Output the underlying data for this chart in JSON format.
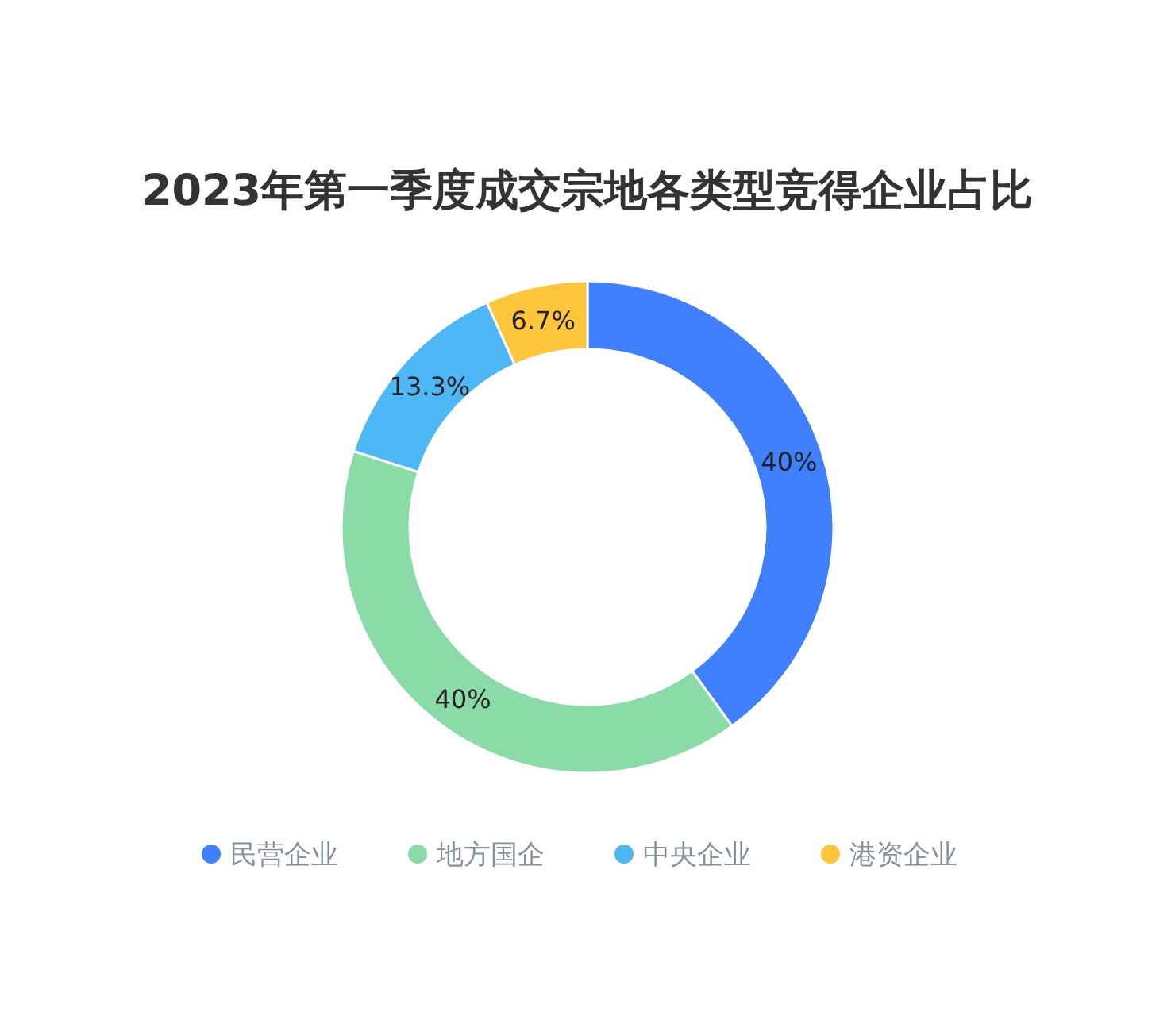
{
  "chart_data": {
    "type": "donut",
    "title": "2023年第一季度成交宗地各类型竞得企业占比",
    "categories": [
      "民营企业",
      "地方国企",
      "中央企业",
      "港资企业"
    ],
    "values": [
      40,
      40,
      13.3,
      6.7
    ],
    "value_labels": [
      "40%",
      "40%",
      "13.3%",
      "6.7%"
    ],
    "colors": [
      "#4080ff",
      "#8adba8",
      "#4db8f5",
      "#ffc53d"
    ],
    "legend": "bottom"
  }
}
